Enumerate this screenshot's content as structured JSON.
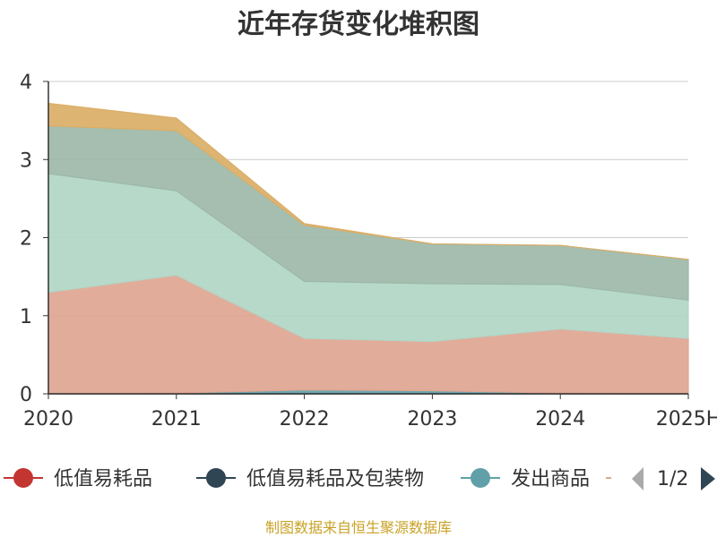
{
  "title": "近年存货变化堆积图",
  "source": "制图数据来自恒生聚源数据库",
  "legend": {
    "page": "1/2"
  },
  "chart_data": {
    "type": "area",
    "stacked": true,
    "title": "近年存货变化堆积图",
    "categories": [
      "2020",
      "2021",
      "2022",
      "2023",
      "2024",
      "2025H"
    ],
    "ylim": [
      0,
      4
    ],
    "yticks": [
      "0",
      "1",
      "2",
      "3",
      "4"
    ],
    "grid": true,
    "legend_position": "bottom",
    "series": [
      {
        "name": "低值易耗品",
        "color": "#c23531",
        "values": [
          0,
          0,
          0,
          0,
          0,
          0
        ]
      },
      {
        "name": "低值易耗品及包装物",
        "color": "#2f4554",
        "values": [
          0,
          0,
          0,
          0,
          0,
          0
        ]
      },
      {
        "name": "发出商品",
        "color": "#61a0a8",
        "values": [
          0,
          0.01,
          0.05,
          0.04,
          0.01,
          0.0
        ]
      },
      {
        "name": "",
        "color": "#e0a591",
        "values": [
          1.3,
          1.51,
          0.66,
          0.63,
          0.82,
          0.71
        ]
      },
      {
        "name": "",
        "color": "#b1d6c6",
        "values": [
          1.52,
          1.08,
          0.73,
          0.74,
          0.57,
          0.49
        ]
      },
      {
        "name": "",
        "color": "#9db8a8",
        "values": [
          0.61,
          0.77,
          0.72,
          0.51,
          0.5,
          0.52
        ]
      },
      {
        "name": "",
        "color": "#dbae67",
        "values": [
          0.29,
          0.16,
          0.02,
          0.0,
          0.0,
          0.0
        ]
      }
    ]
  }
}
